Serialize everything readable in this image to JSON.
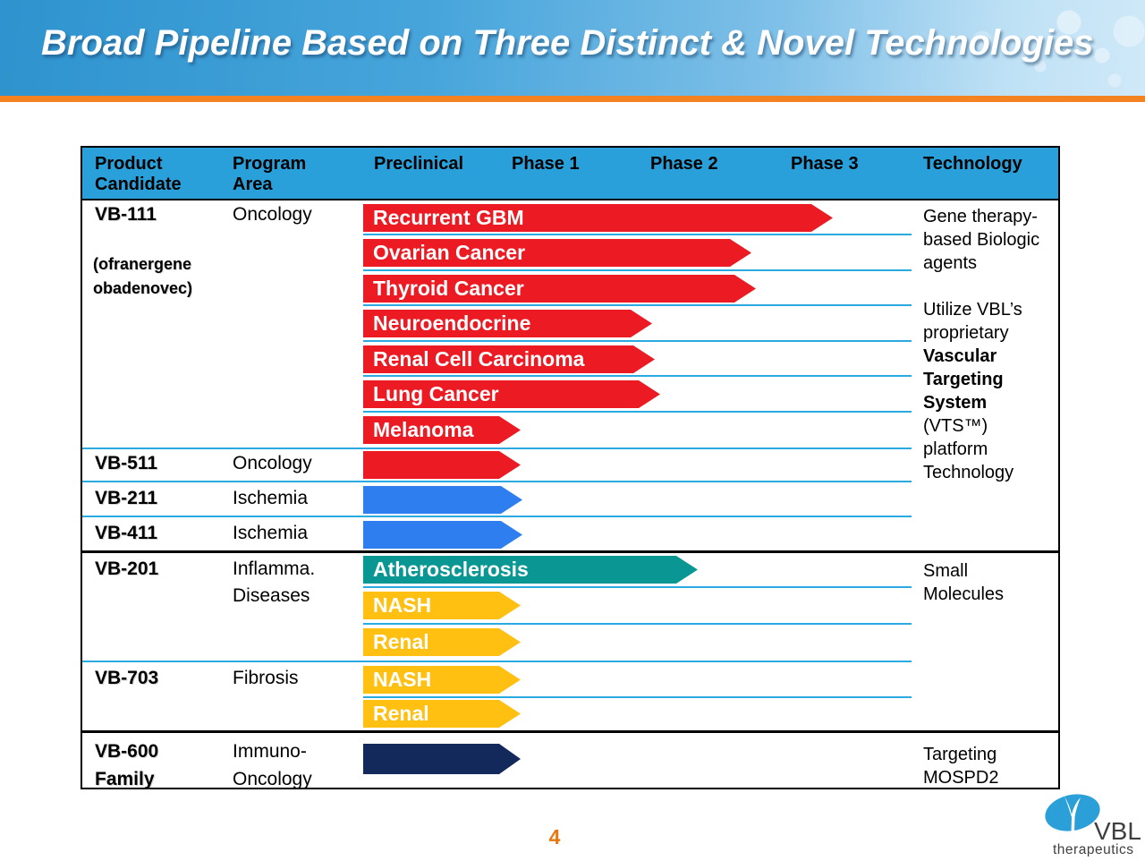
{
  "slide": {
    "title": "Broad Pipeline Based on Three Distinct & Novel Technologies",
    "page_number": "4"
  },
  "logo": {
    "brand": "VBL",
    "sub": "therapeutics"
  },
  "table": {
    "columns": [
      {
        "line1": "Product",
        "line2": "Candidate"
      },
      {
        "line1": "Program",
        "line2": "Area"
      },
      {
        "line1": "Preclinical",
        "line2": ""
      },
      {
        "line1": "Phase 1",
        "line2": ""
      },
      {
        "line1": "Phase 2",
        "line2": ""
      },
      {
        "line1": "Phase 3",
        "line2": ""
      },
      {
        "line1": "Technology",
        "line2": ""
      }
    ],
    "colors": {
      "red": "#EC1B23",
      "blue": "#2E7EF0",
      "teal": "#0A9793",
      "yellow": "#FFC012",
      "navy": "#13295B",
      "phase_line": "#29ABE2",
      "header_bg": "#2AA0DA",
      "accent_orange": "#F58220"
    },
    "groups": [
      {
        "candidate": "VB-111",
        "note_line1": "(ofranergene",
        "note_line2": "obadenovec)",
        "program": "Oncology",
        "arrows": [
          {
            "label": "Recurrent GBM",
            "color": "red",
            "tip": 929,
            "phase_reached": "Phase 3"
          },
          {
            "label": "Ovarian Cancer",
            "color": "red",
            "tip": 838,
            "phase_reached": "Phase 2"
          },
          {
            "label": "Thyroid Cancer",
            "color": "red",
            "tip": 843,
            "phase_reached": "Phase 2"
          },
          {
            "label": "Neuroendocrine",
            "color": "red",
            "tip": 727,
            "phase_reached": "Phase 1-2"
          },
          {
            "label": "Renal Cell Carcinoma",
            "color": "red",
            "tip": 730,
            "phase_reached": "Phase 1-2"
          },
          {
            "label": "Lung Cancer",
            "color": "red",
            "tip": 736,
            "phase_reached": "Phase 1-2"
          },
          {
            "label": "Melanoma",
            "color": "red",
            "tip": 580,
            "phase_reached": "Preclinical"
          }
        ],
        "technology_lines": [
          "Gene therapy-",
          "based Biologic",
          "agents",
          "",
          "Utilize VBL’s",
          "proprietary",
          "Vascular",
          "Targeting",
          "System",
          "(VTS™)",
          "platform",
          "Technology"
        ]
      },
      {
        "candidate": "VB-511",
        "program": "Oncology",
        "arrows": [
          {
            "label": "",
            "color": "red",
            "tip": 580,
            "phase_reached": "Preclinical"
          }
        ]
      },
      {
        "candidate": "VB-211",
        "program": "Ischemia",
        "arrows": [
          {
            "label": "",
            "color": "blue",
            "tip": 582,
            "phase_reached": "Preclinical"
          }
        ]
      },
      {
        "candidate": "VB-411",
        "program": "Ischemia",
        "arrows": [
          {
            "label": "",
            "color": "blue",
            "tip": 582,
            "phase_reached": "Preclinical"
          }
        ]
      },
      {
        "candidate": "VB-201",
        "program_line1": "Inflamma.",
        "program_line2": "Diseases",
        "arrows": [
          {
            "label": "Atherosclerosis",
            "color": "teal",
            "tip": 778,
            "phase_reached": "Phase 2"
          },
          {
            "label": "NASH",
            "color": "yellow",
            "tip": 580,
            "phase_reached": "Preclinical"
          },
          {
            "label": "Renal",
            "color": "yellow",
            "tip": 580,
            "phase_reached": "Preclinical"
          }
        ],
        "technology_lines": [
          "Small",
          "Molecules"
        ]
      },
      {
        "candidate": "VB-703",
        "program": "Fibrosis",
        "arrows": [
          {
            "label": "NASH",
            "color": "yellow",
            "tip": 580,
            "phase_reached": "Preclinical"
          },
          {
            "label": "Renal",
            "color": "yellow",
            "tip": 580,
            "phase_reached": "Preclinical"
          }
        ]
      },
      {
        "candidate": "VB-600",
        "candidate_line2": "Family",
        "program_line1": "Immuno-",
        "program_line2": "Oncology",
        "arrows": [
          {
            "label": "",
            "color": "navy",
            "tip": 580,
            "phase_reached": "Preclinical"
          }
        ],
        "technology_lines": [
          "Targeting",
          "MOSPD2"
        ]
      }
    ]
  }
}
